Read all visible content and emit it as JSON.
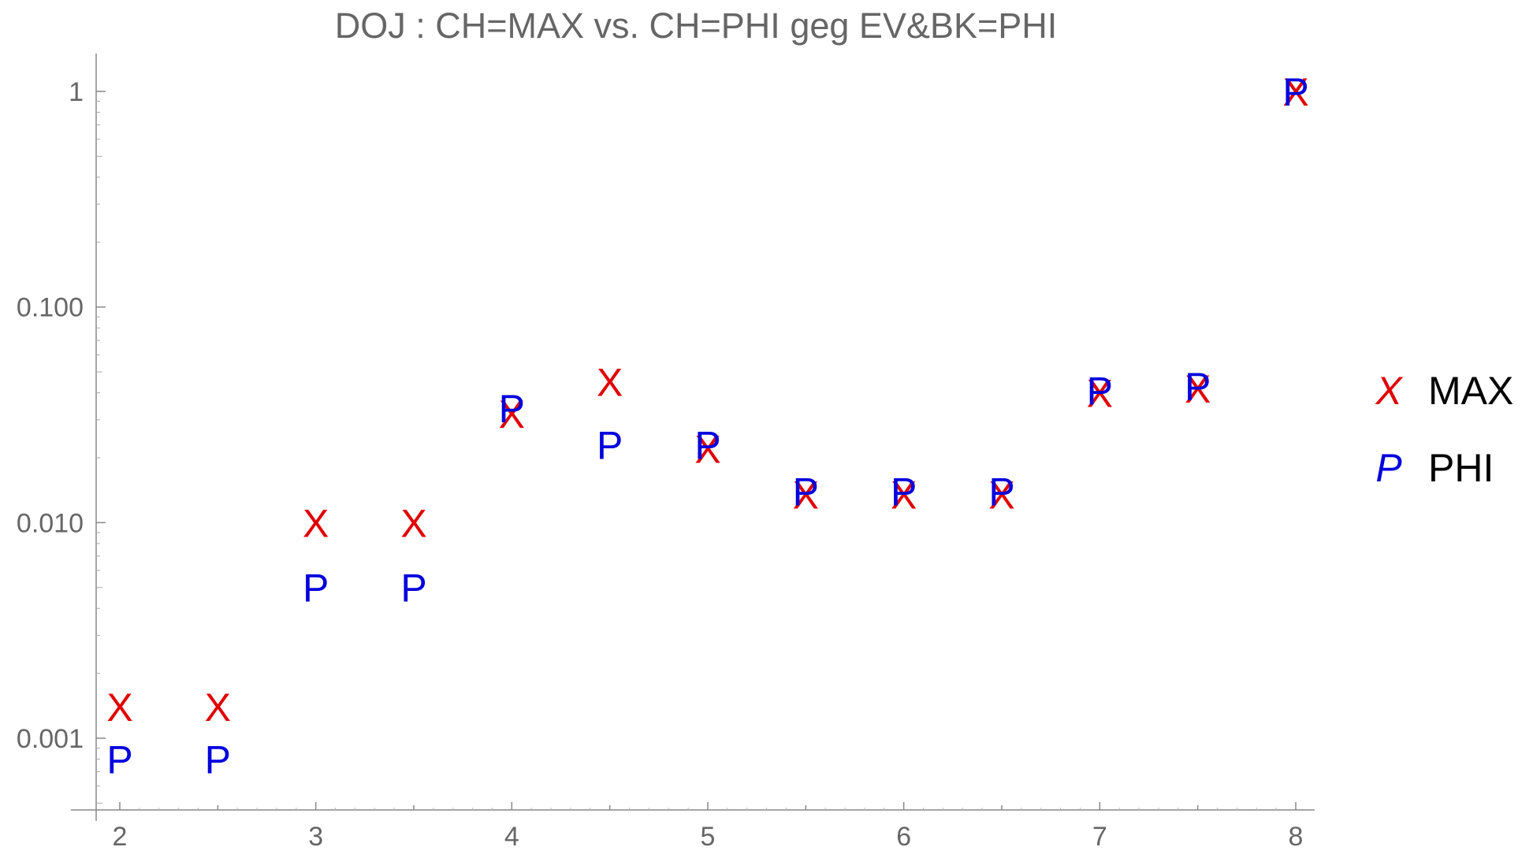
{
  "chart_data": {
    "type": "scatter",
    "title": "DOJ : CH=MAX vs. CH=PHI geg EV&BK=PHI",
    "xlabel": "",
    "ylabel": "",
    "xlim": [
      1.9,
      8.1
    ],
    "ylim": [
      0.0005,
      1.5
    ],
    "yscale": "log",
    "grid": false,
    "legend": "right",
    "x_ticks": [
      {
        "value": 2,
        "label": "2"
      },
      {
        "value": 3,
        "label": "3"
      },
      {
        "value": 4,
        "label": "4"
      },
      {
        "value": 5,
        "label": "5"
      },
      {
        "value": 6,
        "label": "6"
      },
      {
        "value": 7,
        "label": "7"
      },
      {
        "value": 8,
        "label": "8"
      }
    ],
    "y_ticks": [
      {
        "value": 0.001,
        "label": "0.001"
      },
      {
        "value": 0.01,
        "label": "0.010"
      },
      {
        "value": 0.1,
        "label": "0.100"
      },
      {
        "value": 1,
        "label": "1"
      }
    ],
    "series": [
      {
        "name": "MAX",
        "marker": "X",
        "legend_marker": "X",
        "color": "#e00000",
        "x": [
          2,
          2.5,
          3,
          3.5,
          4,
          4.5,
          5,
          5.5,
          6,
          6.5,
          7,
          7.5,
          8
        ],
        "y": [
          0.0014,
          0.0014,
          0.01,
          0.01,
          0.032,
          0.045,
          0.022,
          0.0135,
          0.0135,
          0.0135,
          0.04,
          0.042,
          1.0
        ]
      },
      {
        "name": "PHI",
        "marker": "P",
        "legend_marker": "P",
        "color": "#0000dd",
        "x": [
          2,
          2.5,
          3,
          3.5,
          4,
          4.5,
          5,
          5.5,
          6,
          6.5,
          7,
          7.5,
          8
        ],
        "y": [
          0.0008,
          0.0008,
          0.005,
          0.005,
          0.034,
          0.023,
          0.023,
          0.014,
          0.014,
          0.014,
          0.041,
          0.043,
          1.0
        ]
      }
    ]
  }
}
